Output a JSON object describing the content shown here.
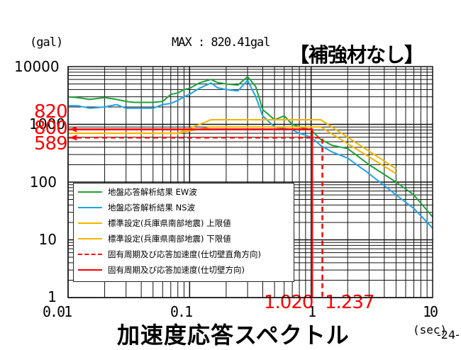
{
  "header": {
    "unit_label": "(gal)",
    "max_label": "MAX : 820.41gal",
    "condition_title": "【補強材なし】"
  },
  "footer": {
    "chart_title": "加速度応答スペクトル",
    "x_unit": "(sec)",
    "page_number": "-24-"
  },
  "axes": {
    "y_ticks": [
      "10000",
      "1000",
      "100",
      "10",
      "1"
    ],
    "x_ticks": [
      "0.01",
      "0.1",
      "1",
      "10"
    ]
  },
  "annotations": {
    "y_marks": [
      "820",
      "800",
      "589"
    ],
    "x_marks": [
      "1.020",
      "1.237"
    ]
  },
  "legend": {
    "items": [
      {
        "label": "地盤応答解析結果 EW波",
        "color": "#1aa33a",
        "style": "solid"
      },
      {
        "label": "地盤応答解析結果 NS波",
        "color": "#1fa4e8",
        "style": "solid"
      },
      {
        "label": "標準設定(兵庫県南部地震) 上限値",
        "color": "#f5b400",
        "style": "solid"
      },
      {
        "label": "標準設定(兵庫県南部地震) 下限値",
        "color": "#f5b400",
        "style": "solid"
      },
      {
        "label": "固有周期及び応答加速度(仕切壁直角方向)",
        "color": "#ff0000",
        "style": "dashed"
      },
      {
        "label": "固有周期及び応答加速度(仕切壁方向)",
        "color": "#ff0000",
        "style": "solid"
      }
    ]
  },
  "colors": {
    "ew": "#1aa33a",
    "ns": "#1fa4e8",
    "standard": "#f5b400",
    "marker": "#ff0000",
    "grid": "#111111"
  },
  "chart_data": {
    "type": "line",
    "title": "加速度応答スペクトル",
    "subtitle": "【補強材なし】 MAX : 820.41gal",
    "xlabel": "(sec)",
    "ylabel": "(gal)",
    "xscale": "log",
    "yscale": "log",
    "xlim": [
      0.01,
      10
    ],
    "ylim": [
      1,
      10000
    ],
    "grid": true,
    "legend_position": "lower-left inside",
    "series": [
      {
        "name": "地盤応答解析結果 EW波",
        "color": "#1aa33a",
        "x": [
          0.01,
          0.012,
          0.015,
          0.02,
          0.025,
          0.03,
          0.035,
          0.04,
          0.05,
          0.06,
          0.07,
          0.08,
          0.09,
          0.1,
          0.12,
          0.15,
          0.17,
          0.2,
          0.25,
          0.3,
          0.35,
          0.4,
          0.5,
          0.6,
          0.7,
          0.8,
          1.0,
          1.2,
          1.5,
          2.0,
          3.0,
          5.0,
          7.0,
          10.0
        ],
        "y": [
          3000,
          2900,
          2700,
          2900,
          2700,
          2500,
          2400,
          2400,
          2400,
          2500,
          3300,
          3500,
          4000,
          4200,
          5200,
          6000,
          5300,
          5000,
          4800,
          6700,
          4500,
          1800,
          1200,
          1400,
          1000,
          900,
          800,
          550,
          430,
          380,
          200,
          100,
          60,
          25
        ]
      },
      {
        "name": "地盤応答解析結果 NS波",
        "color": "#1fa4e8",
        "x": [
          0.01,
          0.012,
          0.015,
          0.02,
          0.025,
          0.03,
          0.035,
          0.04,
          0.05,
          0.06,
          0.07,
          0.08,
          0.09,
          0.1,
          0.12,
          0.15,
          0.17,
          0.2,
          0.25,
          0.3,
          0.35,
          0.4,
          0.5,
          0.6,
          0.7,
          0.8,
          1.0,
          1.2,
          1.5,
          2.0,
          3.0,
          5.0,
          7.0,
          10.0
        ],
        "y": [
          2100,
          2100,
          1900,
          2000,
          2200,
          1900,
          1900,
          1900,
          1900,
          2200,
          2300,
          2600,
          3000,
          3300,
          4200,
          5200,
          4300,
          4000,
          3800,
          5800,
          3000,
          1400,
          900,
          850,
          800,
          700,
          600,
          430,
          330,
          260,
          140,
          60,
          35,
          16
        ]
      },
      {
        "name": "標準設定(兵庫県南部地震) 上限値",
        "color": "#f5b400",
        "x": [
          0.01,
          0.08,
          0.15,
          1.2,
          5.0
        ],
        "y": [
          700,
          700,
          1200,
          1200,
          170
        ]
      },
      {
        "name": "標準設定(兵庫県南部地震) 下限値",
        "color": "#f5b400",
        "x": [
          0.01,
          0.08,
          0.15,
          1.2,
          5.0
        ],
        "y": [
          700,
          700,
          900,
          900,
          140
        ]
      },
      {
        "name": "固有周期及び応答加速度(仕切壁直角方向)",
        "color": "#ff0000",
        "style": "dashed",
        "x": [
          0.01,
          1.237,
          1.237
        ],
        "y": [
          589,
          589,
          1
        ]
      },
      {
        "name": "固有周期及び応答加速度(仕切壁方向)",
        "color": "#ff0000",
        "style": "solid",
        "x": [
          0.01,
          1.02,
          1.02
        ],
        "y": [
          820,
          820,
          1
        ]
      }
    ],
    "annotations": [
      {
        "text": "820",
        "at": "y=820"
      },
      {
        "text": "800",
        "at": "y=800"
      },
      {
        "text": "589",
        "at": "y=589"
      },
      {
        "text": "1.020",
        "at": "x=1.020"
      },
      {
        "text": "1.237",
        "at": "x=1.237"
      }
    ]
  }
}
